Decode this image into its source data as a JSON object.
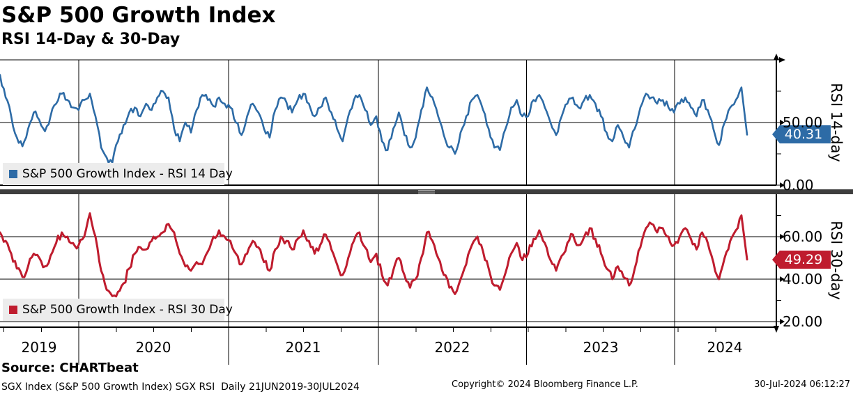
{
  "title": "S&P 500 Growth Index",
  "subtitle": "RSI 14-Day & 30-Day",
  "source": "Source: CHARTbeat",
  "description": "SGX Index (S&P 500 Growth Index) SGX RSI  Daily 21JUN2019-30JUL2024",
  "copyright": "Copyright© 2024 Bloomberg Finance L.P.",
  "timestamp": "30-Jul-2024 06:12:27",
  "colors": {
    "rsi14": "#2d6ba6",
    "rsi30": "#bf1c2e",
    "legend_bg": "#ececec",
    "divider_bar": "#3d3d3d",
    "divider_grip": "#a5a5a5",
    "grid": "#000000",
    "badge_text": "#ffffff"
  },
  "x_axis": {
    "years": [
      "2019",
      "2020",
      "2021",
      "2022",
      "2023",
      "2024"
    ],
    "range": "21JUN2019-30JUL2024",
    "frequency": "Daily"
  },
  "chart_data": [
    {
      "type": "line",
      "series_name": "S&P 500 Growth Index - RSI 14 Day",
      "axis_title": "RSI 14-day",
      "color": "#2d6ba6",
      "last_value": 40.31,
      "ylim": [
        0,
        100
      ],
      "grid": "on",
      "legend_position": "bottom-left",
      "y_ticks_labeled": [
        {
          "v": 50,
          "label": "50.00"
        },
        {
          "v": 0,
          "label": "0.00"
        }
      ],
      "y_ticks_minor": [
        75,
        25
      ],
      "x_years": [
        "2019",
        "2020",
        "2021",
        "2022",
        "2023",
        "2024"
      ],
      "sampling": "approx biweekly estimates read from daily RSI line, 21JUN2019-30JUL2024",
      "values": [
        88,
        70,
        55,
        38,
        31,
        45,
        58,
        52,
        43,
        55,
        65,
        73,
        68,
        62,
        60,
        68,
        73,
        55,
        30,
        22,
        18,
        35,
        48,
        58,
        62,
        55,
        65,
        60,
        70,
        75,
        70,
        45,
        35,
        50,
        42,
        60,
        72,
        68,
        63,
        70,
        65,
        62,
        50,
        40,
        55,
        65,
        58,
        45,
        38,
        60,
        70,
        66,
        58,
        68,
        73,
        65,
        55,
        62,
        70,
        58,
        45,
        35,
        55,
        68,
        72,
        60,
        48,
        55,
        35,
        28,
        45,
        58,
        40,
        30,
        38,
        60,
        78,
        70,
        55,
        40,
        30,
        25,
        42,
        55,
        68,
        72,
        60,
        45,
        30,
        28,
        45,
        62,
        68,
        55,
        55,
        68,
        72,
        62,
        50,
        40,
        55,
        65,
        70,
        62,
        68,
        72,
        65,
        55,
        42,
        35,
        48,
        38,
        30,
        45,
        62,
        73,
        70,
        65,
        68,
        62,
        58,
        65,
        70,
        62,
        55,
        68,
        60,
        45,
        32,
        50,
        62,
        68,
        78,
        40.31
      ]
    },
    {
      "type": "line",
      "series_name": "S&P 500 Growth Index - RSI 30 Day",
      "axis_title": "RSI 30-day",
      "color": "#bf1c2e",
      "last_value": 49.29,
      "ylim": [
        17,
        80
      ],
      "grid": "on",
      "legend_position": "bottom-left",
      "y_ticks_labeled": [
        {
          "v": 60,
          "label": "60.00"
        },
        {
          "v": 40,
          "label": "40.00"
        },
        {
          "v": 20,
          "label": "20.00"
        }
      ],
      "y_ticks_minor": [
        70,
        50,
        30
      ],
      "x_years": [
        "2019",
        "2020",
        "2021",
        "2022",
        "2023",
        "2024"
      ],
      "sampling": "approx biweekly estimates read from daily RSI line, 21JUN2019-30JUL2024",
      "values": [
        62,
        58,
        52,
        45,
        41,
        46,
        52,
        50,
        46,
        51,
        57,
        62,
        60,
        57,
        56,
        60,
        71,
        60,
        44,
        35,
        32,
        34,
        38,
        45,
        52,
        55,
        54,
        58,
        60,
        62,
        66,
        62,
        52,
        46,
        44,
        48,
        47,
        53,
        60,
        63,
        60,
        58,
        52,
        47,
        52,
        58,
        55,
        48,
        44,
        54,
        60,
        58,
        54,
        59,
        63,
        58,
        52,
        56,
        61,
        54,
        47,
        42,
        50,
        58,
        62,
        55,
        48,
        52,
        42,
        37,
        44,
        50,
        42,
        36,
        40,
        50,
        62,
        58,
        50,
        42,
        36,
        33,
        40,
        47,
        56,
        60,
        53,
        45,
        37,
        35,
        43,
        52,
        57,
        49,
        52,
        59,
        63,
        57,
        49,
        44,
        51,
        57,
        61,
        56,
        60,
        64,
        59,
        52,
        45,
        40,
        46,
        41,
        37,
        45,
        55,
        64,
        66,
        62,
        64,
        60,
        56,
        60,
        64,
        59,
        54,
        62,
        57,
        48,
        40,
        50,
        58,
        63,
        70,
        49.29
      ]
    }
  ]
}
